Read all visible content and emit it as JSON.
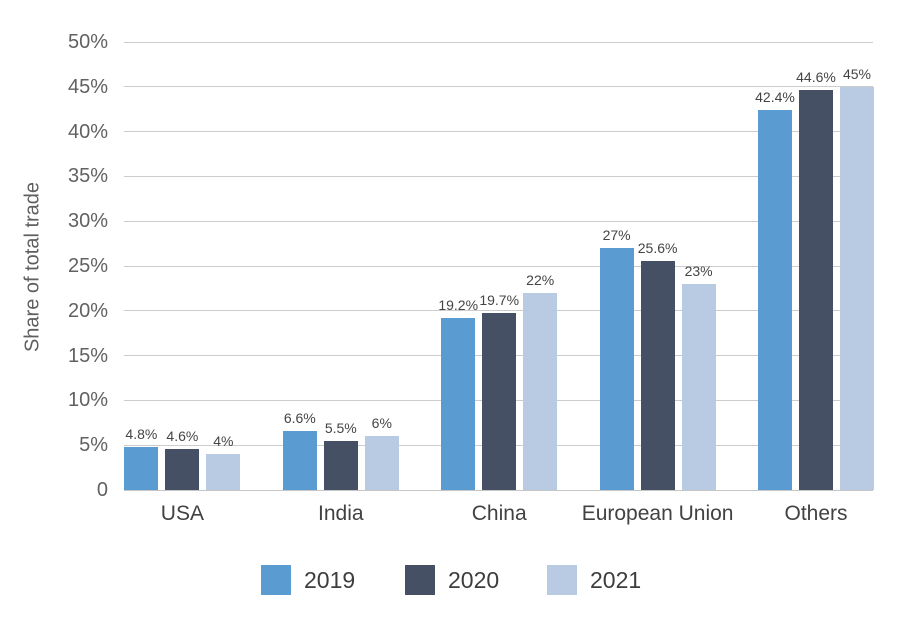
{
  "chart_data": {
    "type": "bar",
    "title": "",
    "ylabel": "Share of total trade",
    "xlabel": "",
    "categories": [
      "USA",
      "India",
      "China",
      "European Union",
      "Others"
    ],
    "series": [
      {
        "name": "2019",
        "color": "#5a9bd2",
        "values": [
          4.8,
          6.6,
          19.2,
          27,
          42.4
        ],
        "value_labels": [
          "4.8%",
          "6.6%",
          "19.2%",
          "27%",
          "42.4%"
        ]
      },
      {
        "name": "2020",
        "color": "#455064",
        "values": [
          4.6,
          5.5,
          19.7,
          25.6,
          44.6
        ],
        "value_labels": [
          "4.6%",
          "5.5%",
          "19.7%",
          "25.6%",
          "44.6%"
        ]
      },
      {
        "name": "2021",
        "color": "#b9cbe2",
        "values": [
          4,
          6,
          22,
          23,
          45
        ],
        "value_labels": [
          "4%",
          "6%",
          "22%",
          "23%",
          "45%"
        ]
      }
    ],
    "ylim": [
      0,
      50
    ],
    "ytick_step": 5,
    "ytick_labels": [
      "0",
      "5%",
      "10%",
      "15%",
      "20%",
      "25%",
      "30%",
      "35%",
      "40%",
      "45%",
      "50%"
    ],
    "grid": true,
    "legend_position": "bottom",
    "legend": [
      "2019",
      "2020",
      "2021"
    ]
  },
  "style_colors": {
    "background": "#ffffff",
    "gridline": "#cccccc",
    "tick_text": "#616161",
    "category_text": "#424242",
    "value_text": "#444444",
    "legend_text": "#3d3d3d",
    "axis_title_text": "#5f5f5f"
  }
}
